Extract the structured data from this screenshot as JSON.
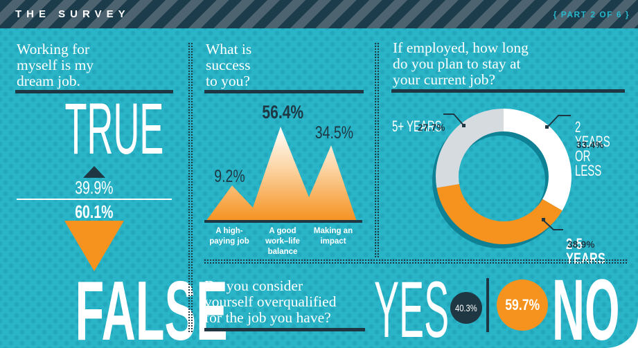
{
  "header": {
    "title": "THE SURVEY",
    "part_label": "{ PART 2 OF 6 }"
  },
  "colors": {
    "teal_bg": "#29b4c8",
    "dark_navy": "#1e3742",
    "orange": "#f6921e",
    "donut_gray": "#d5dbdf",
    "stripe_gray": "#4d6370",
    "donut_shadow": "#0e8195"
  },
  "panel_dream_job": {
    "question": "Working for\nmyself is my\ndream job.",
    "true_label": "TRUE",
    "true_value": "39.9%",
    "false_label": "FALSE",
    "false_value": "60.1%"
  },
  "panel_success": {
    "question": "What is\nsuccess\nto you?",
    "values": {
      "high_paying": "9.2%",
      "work_life": "56.4%",
      "impact": "34.5%"
    },
    "labels": {
      "high_paying": "A high-\npaying job",
      "work_life": "A good\nwork–life\nbalance",
      "impact": "Making an\nimpact"
    }
  },
  "panel_stay": {
    "question": "If employed, how long\ndo you plan to stay at\nyour current job?",
    "labels": {
      "five_plus": "5+ YEARS",
      "five_plus_value": "27.7%",
      "two_or_less": "2 YEARS\nOR LESS",
      "two_or_less_value": "33.4%",
      "two_to_five": "2-5 YEARS",
      "two_to_five_value": "38.9%"
    }
  },
  "panel_overqualified": {
    "question": "Do you consider\nyourself overqualified\nfor the job you have?",
    "yes_label": "YES",
    "yes_value": "40.3%",
    "no_label": "NO",
    "no_value": "59.7%"
  },
  "chart_data": [
    {
      "type": "bar",
      "title": "Working for myself is my dream job.",
      "categories": [
        "True",
        "False"
      ],
      "values": [
        39.9,
        60.1
      ],
      "unit": "%"
    },
    {
      "type": "area",
      "title": "What is success to you?",
      "categories": [
        "A high-paying job",
        "A good work-life balance",
        "Making an impact"
      ],
      "values": [
        9.2,
        56.4,
        34.5
      ],
      "unit": "%"
    },
    {
      "type": "pie",
      "donut": true,
      "legend_position": "callouts",
      "title": "If employed, how long do you plan to stay at your current job?",
      "categories": [
        "2 years or less",
        "2-5 years",
        "5+ years"
      ],
      "values": [
        33.4,
        38.9,
        27.7
      ],
      "colors": [
        "#ffffff",
        "#f6921e",
        "#d5dbdf"
      ],
      "unit": "%"
    },
    {
      "type": "pie",
      "title": "Do you consider yourself overqualified for the job you have?",
      "categories": [
        "Yes",
        "No"
      ],
      "values": [
        40.3,
        59.7
      ],
      "unit": "%"
    }
  ]
}
